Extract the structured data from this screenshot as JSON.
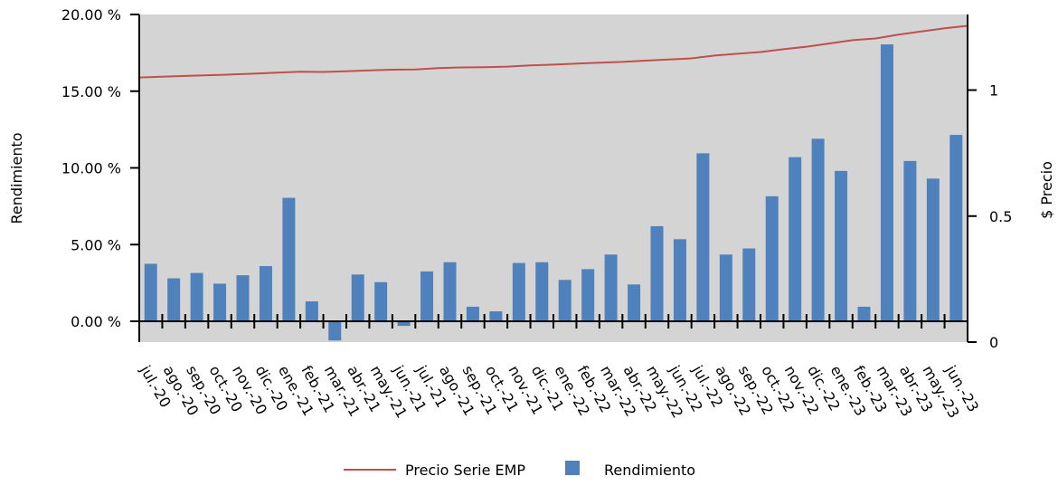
{
  "chart_data": {
    "type": "bar",
    "categories": [
      "jul.-20",
      "ago.-20",
      "sep.-20",
      "oct.-20",
      "nov.-20",
      "dic.-20",
      "ene.-21",
      "feb.-21",
      "mar.-21",
      "abr.-21",
      "may.-21",
      "jun.-21",
      "jul.-21",
      "ago.-21",
      "sep.-21",
      "oct.-21",
      "nov.-21",
      "dic.-21",
      "ene.-22",
      "feb.-22",
      "mar.-22",
      "abr.-22",
      "may.-22",
      "jun.-22",
      "jul.-22",
      "ago.-22",
      "sep.-22",
      "oct.-22",
      "nov.-22",
      "dic.-22",
      "ene.-23",
      "feb.-23",
      "mar.-23",
      "abr.-23",
      "may.-23",
      "jun.-23"
    ],
    "series": [
      {
        "name": "Rendimiento",
        "axis": "left",
        "type": "bar",
        "color": "#4F81BD",
        "values": [
          3.75,
          2.8,
          3.15,
          2.45,
          3.0,
          3.6,
          8.05,
          1.3,
          -1.25,
          3.05,
          2.55,
          -0.3,
          3.25,
          3.85,
          0.95,
          0.65,
          3.8,
          3.85,
          2.7,
          3.4,
          4.35,
          2.4,
          6.2,
          5.35,
          10.95,
          4.35,
          4.75,
          8.15,
          10.7,
          11.9,
          9.8,
          0.95,
          18.05,
          10.45,
          9.3,
          12.15
        ]
      },
      {
        "name": "Precio Serie EMP",
        "axis": "right",
        "type": "line",
        "color": "#C0504D",
        "x": [
          0,
          1,
          2,
          3,
          4,
          5,
          6,
          7,
          8,
          9,
          10,
          11,
          12,
          13,
          14,
          15,
          16,
          17,
          18,
          19,
          20,
          21,
          22,
          23,
          24,
          25,
          26,
          27,
          28,
          29,
          30,
          31,
          32,
          33,
          34,
          35,
          36
        ],
        "values": [
          1.05,
          1.053,
          1.056,
          1.059,
          1.062,
          1.065,
          1.069,
          1.073,
          1.072,
          1.075,
          1.078,
          1.081,
          1.082,
          1.087,
          1.09,
          1.091,
          1.093,
          1.098,
          1.101,
          1.105,
          1.109,
          1.112,
          1.117,
          1.121,
          1.126,
          1.137,
          1.144,
          1.151,
          1.162,
          1.172,
          1.185,
          1.198,
          1.205,
          1.22,
          1.233,
          1.245,
          1.255
        ]
      }
    ],
    "y_left": {
      "label": "Rendimiento",
      "ylim": [
        -1.25,
        20
      ],
      "ticks": [
        0,
        5,
        10,
        15,
        20
      ],
      "tick_labels": [
        "0.00 %",
        "5.00 %",
        "10.00 %",
        "15.00 %",
        "20.00 %"
      ]
    },
    "y_right": {
      "label": "$ Precio",
      "ylim": [
        0,
        1.3
      ],
      "ticks": [
        0,
        0.5,
        1
      ],
      "tick_labels": [
        "0",
        "0.5",
        "1"
      ]
    },
    "grid": false,
    "plot_background": "#D4D4D4",
    "legend": {
      "position": "bottom",
      "entries": [
        {
          "label": "Precio Serie EMP",
          "symbol": "line",
          "color": "#C0504D"
        },
        {
          "label": "Rendimiento",
          "symbol": "square",
          "color": "#4F81BD"
        }
      ]
    }
  }
}
